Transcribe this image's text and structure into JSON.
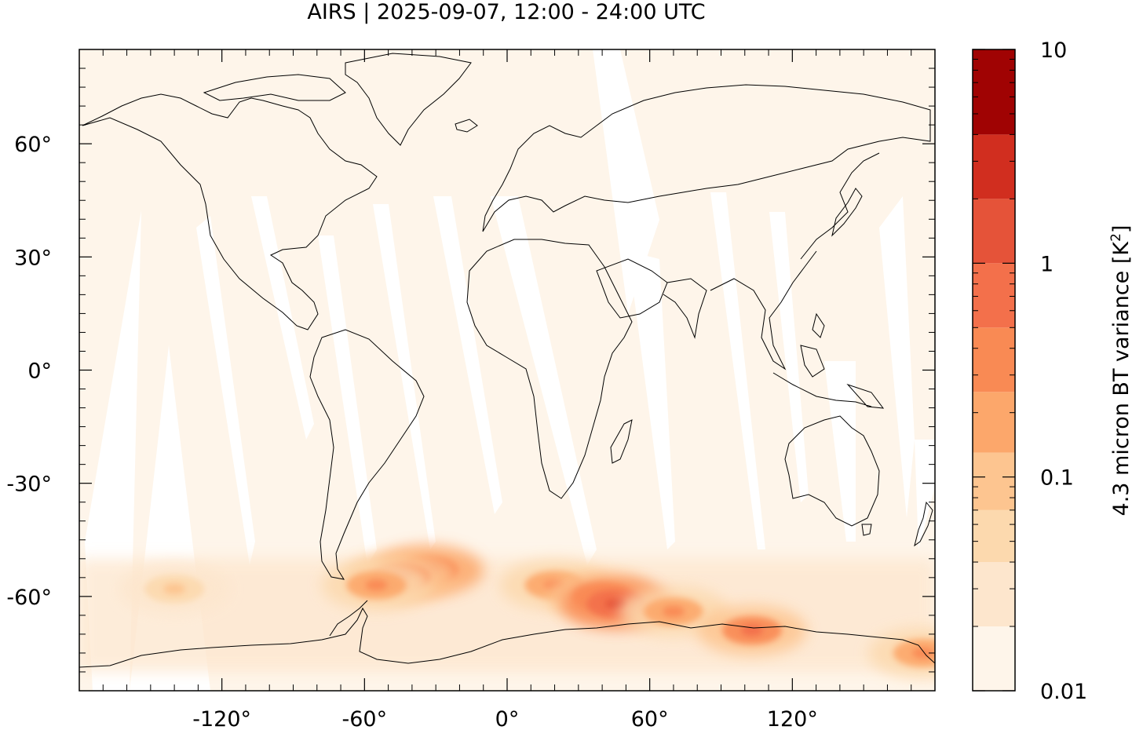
{
  "title": "AIRS | 2025-09-07, 12:00 - 24:00 UTC",
  "map": {
    "projection": "equirectangular",
    "lon_range": [
      -180,
      180
    ],
    "lat_range": [
      -85,
      85
    ],
    "background_fill": "#FEF5EA",
    "swath_gap_fill": "#FFFFFF",
    "x_ticks": [
      {
        "value": -120,
        "label": "-120°"
      },
      {
        "value": -60,
        "label": "-60°"
      },
      {
        "value": 0,
        "label": "0°"
      },
      {
        "value": 60,
        "label": "60°"
      },
      {
        "value": 120,
        "label": "120°"
      }
    ],
    "y_ticks": [
      {
        "value": 60,
        "label": "60°"
      },
      {
        "value": 30,
        "label": "30°"
      },
      {
        "value": 0,
        "label": "0°"
      },
      {
        "value": -30,
        "label": "-30°"
      },
      {
        "value": -60,
        "label": "-60°"
      }
    ]
  },
  "colorbar": {
    "label_main": "4.3 micron BT variance [K",
    "label_sup": "2",
    "label_end": "]",
    "scale": "log",
    "range": [
      0.01,
      10
    ],
    "tick_labels": [
      {
        "value": 10,
        "label": "10"
      },
      {
        "value": 1,
        "label": "1"
      },
      {
        "value": 0.1,
        "label": "0.1"
      },
      {
        "value": 0.01,
        "label": "0.01"
      }
    ],
    "levels": [
      {
        "from": 0.01,
        "to": 0.02,
        "color": "#FEF5EA"
      },
      {
        "from": 0.02,
        "to": 0.04,
        "color": "#FDE6CD"
      },
      {
        "from": 0.04,
        "to": 0.07,
        "color": "#FCD9AE"
      },
      {
        "from": 0.07,
        "to": 0.13,
        "color": "#FDC590"
      },
      {
        "from": 0.13,
        "to": 0.25,
        "color": "#FCA76B"
      },
      {
        "from": 0.25,
        "to": 0.5,
        "color": "#F98A54"
      },
      {
        "from": 0.5,
        "to": 1.0,
        "color": "#F3704B"
      },
      {
        "from": 1.0,
        "to": 2.0,
        "color": "#E55339"
      },
      {
        "from": 2.0,
        "to": 4.0,
        "color": "#D12E1F"
      },
      {
        "from": 4.0,
        "to": 10.0,
        "color": "#A00303"
      }
    ]
  },
  "activity_regions": [
    {
      "lon": -33,
      "lat": -53,
      "level": 0.8
    },
    {
      "lon": -45,
      "lat": -55,
      "level": 0.5
    },
    {
      "lon": -55,
      "lat": -57,
      "level": 0.35
    },
    {
      "lon": 20,
      "lat": -57,
      "level": 0.4
    },
    {
      "lon": 40,
      "lat": -60,
      "level": 0.6
    },
    {
      "lon": 46,
      "lat": -62,
      "level": 1.5
    },
    {
      "lon": 70,
      "lat": -64,
      "level": 0.3
    },
    {
      "lon": 103,
      "lat": -69,
      "level": 0.5
    },
    {
      "lon": -140,
      "lat": -58,
      "level": 0.1
    },
    {
      "lon": 175,
      "lat": -75,
      "level": 0.3
    }
  ]
}
